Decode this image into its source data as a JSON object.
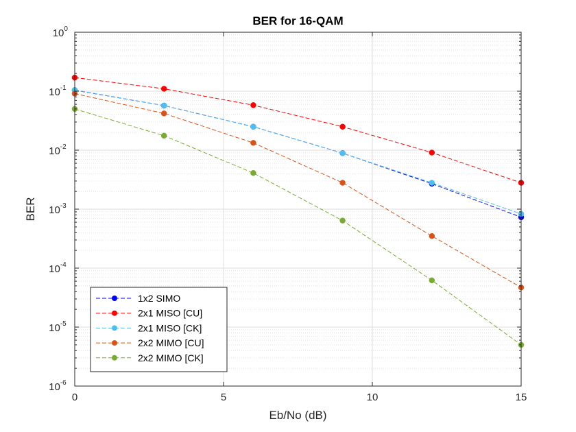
{
  "chart_data": {
    "type": "line",
    "title": "BER for 16-QAM",
    "xlabel": "Eb/No (dB)",
    "ylabel": "BER",
    "xlim": [
      0,
      15
    ],
    "ylim": [
      1e-06,
      1
    ],
    "yscale": "log",
    "grid": true,
    "minor_grid": true,
    "legend_position": "bottom-left",
    "x_ticks": [
      0,
      5,
      10,
      15
    ],
    "y_ticks": [
      {
        "mantissa": "10",
        "exp": "-6",
        "value": 1e-06
      },
      {
        "mantissa": "10",
        "exp": "-5",
        "value": 1e-05
      },
      {
        "mantissa": "10",
        "exp": "-4",
        "value": 0.0001
      },
      {
        "mantissa": "10",
        "exp": "-3",
        "value": 0.001
      },
      {
        "mantissa": "10",
        "exp": "-2",
        "value": 0.01
      },
      {
        "mantissa": "10",
        "exp": "-1",
        "value": 0.1
      },
      {
        "mantissa": "10",
        "exp": "0",
        "value": 1
      }
    ],
    "x": [
      0,
      3,
      6,
      9,
      12,
      15
    ],
    "series": [
      {
        "name": "1x2 SIMO",
        "color": "#0000FF",
        "values": [
          0.104,
          0.057,
          0.025,
          0.0089,
          0.0027,
          0.00073
        ]
      },
      {
        "name": "2x1 MISO [CU]",
        "color": "#FF0000",
        "values": [
          0.17,
          0.11,
          0.058,
          0.025,
          0.0091,
          0.0028
        ]
      },
      {
        "name": "2x1 MISO [CK]",
        "color": "#4DBEEE",
        "values": [
          0.105,
          0.057,
          0.025,
          0.0089,
          0.0028,
          0.00083
        ]
      },
      {
        "name": "2x2 MIMO [CU]",
        "color": "#D95319",
        "values": [
          0.091,
          0.042,
          0.0133,
          0.0028,
          0.00035,
          4.7e-05
        ]
      },
      {
        "name": "2x2 MIMO [CK]",
        "color": "#77AC30",
        "values": [
          0.05,
          0.0176,
          0.0041,
          0.00064,
          6.2e-05,
          5e-06
        ]
      }
    ]
  }
}
